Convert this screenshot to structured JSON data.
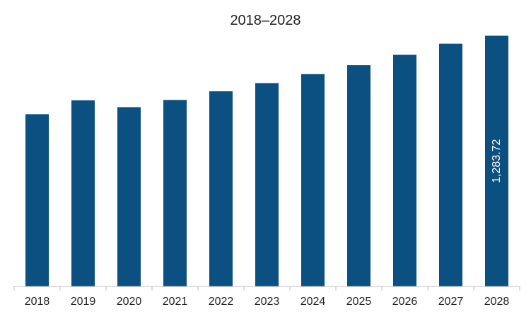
{
  "chart_data": {
    "type": "bar",
    "title": "2018–2028",
    "xlabel": "",
    "ylabel": "",
    "categories": [
      "2018",
      "2019",
      "2020",
      "2021",
      "2022",
      "2023",
      "2024",
      "2025",
      "2026",
      "2027",
      "2028"
    ],
    "values": [
      882,
      953,
      918,
      955,
      999,
      1041,
      1087,
      1133,
      1186,
      1243,
      1283.72
    ],
    "data_labels": [
      null,
      null,
      null,
      null,
      null,
      null,
      null,
      null,
      null,
      null,
      "1,283.72"
    ],
    "ylim": [
      0,
      1300
    ],
    "bar_color": "#0b5080",
    "grid": false,
    "legend": "none"
  }
}
